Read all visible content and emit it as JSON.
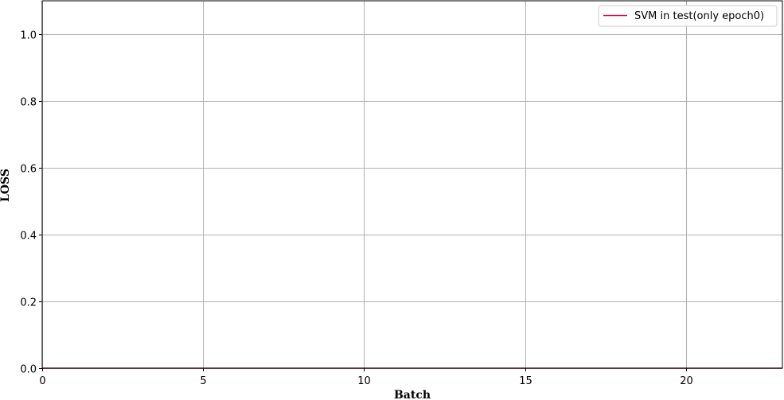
{
  "chart_data": {
    "type": "line",
    "title": "",
    "xlabel": "Batch",
    "ylabel": "LOSS",
    "xlim": [
      0,
      23
    ],
    "ylim": [
      0,
      1.1
    ],
    "x_ticks": [
      0,
      5,
      10,
      15,
      20
    ],
    "x_tick_labels": [
      "0",
      "5",
      "10",
      "15",
      "20"
    ],
    "y_ticks": [
      0.0,
      0.2,
      0.4,
      0.6,
      0.8,
      1.0
    ],
    "y_tick_labels": [
      "0.0",
      "0.2",
      "0.4",
      "0.6",
      "0.8",
      "1.0"
    ],
    "grid": true,
    "legend_position": "top-right",
    "series": [
      {
        "name": "SVM in test(only epoch0)",
        "color": "#c2185b",
        "x": [
          0,
          23
        ],
        "y": [
          0,
          0
        ]
      }
    ]
  }
}
